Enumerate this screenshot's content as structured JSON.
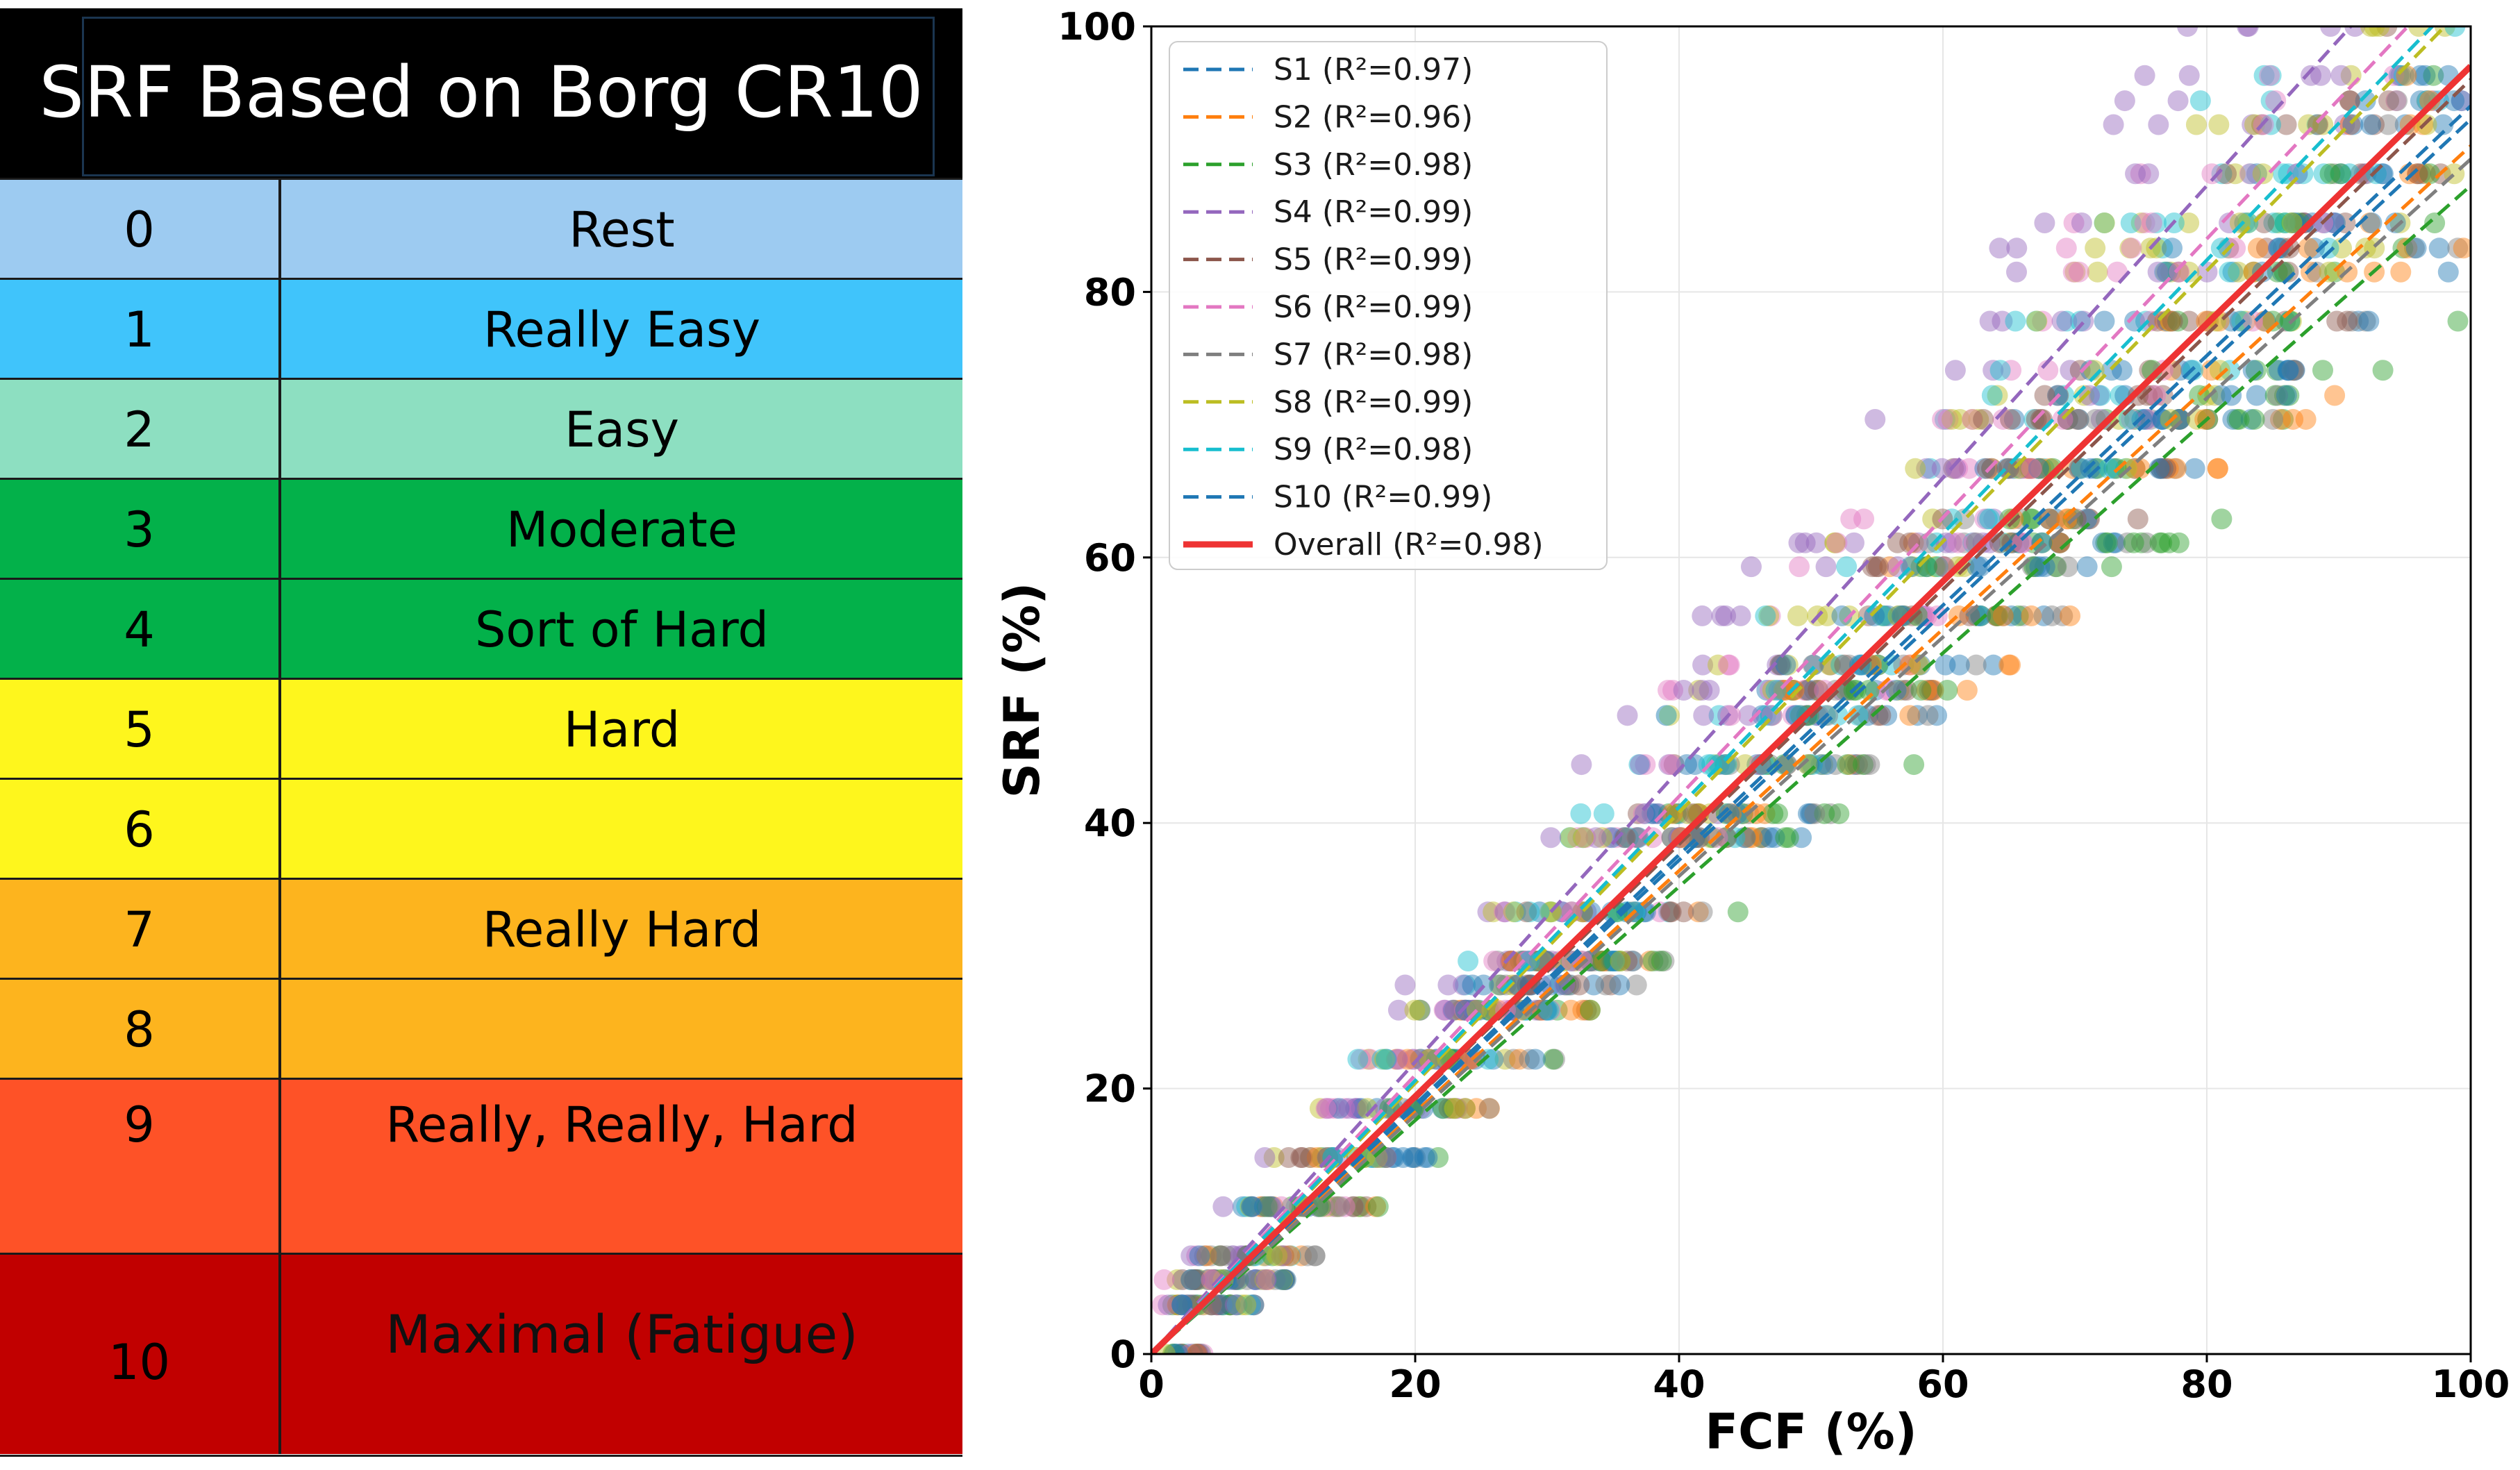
{
  "borg_table": {
    "title": "SRF Based on Borg CR10",
    "rows": [
      {
        "level": "0",
        "label": "Rest",
        "color": "#9dcbf1"
      },
      {
        "level": "1",
        "label": "Really Easy",
        "color": "#40c4fb"
      },
      {
        "level": "2",
        "label": "Easy",
        "color": "#8ddfc1"
      },
      {
        "level": "3",
        "label": "Moderate",
        "color": "#03b14a"
      },
      {
        "level": "4",
        "label": "Sort of Hard",
        "color": "#03b14a"
      },
      {
        "level": "5",
        "label": "Hard",
        "color": "#fef61d"
      },
      {
        "level": "6",
        "label": "",
        "color": "#fef61d"
      },
      {
        "level": "7",
        "label": "Really Hard",
        "color": "#fdb41e"
      },
      {
        "level": "8",
        "label": "",
        "color": "#fdb41e"
      },
      {
        "level": "9",
        "label": "Really, Really, Hard",
        "color": "#fe5227"
      },
      {
        "level": "10",
        "label": "Maximal (Fatigue)",
        "color": "#c10000"
      }
    ]
  },
  "chart_data": {
    "type": "scatter",
    "xlabel": "FCF (%)",
    "ylabel": "SRF (%)",
    "xlim": [
      0,
      100
    ],
    "ylim": [
      0,
      100
    ],
    "xticks": [
      0,
      20,
      40,
      60,
      80,
      100
    ],
    "yticks": [
      0,
      20,
      40,
      60,
      80,
      100
    ],
    "grid": true,
    "legend_position": "top-left",
    "srf_levels": [
      0,
      3.7,
      5.6,
      7.4,
      11.1,
      14.8,
      18.5,
      22.2,
      25.9,
      27.8,
      29.6,
      33.3,
      38.9,
      40.7,
      44.4,
      48.1,
      50,
      51.9,
      55.6,
      59.3,
      61.1,
      62.9,
      66.7,
      70.4,
      72.2,
      74.1,
      77.8,
      81.5,
      83.3,
      85.2,
      88.9,
      92.6,
      94.4,
      96.3,
      100
    ],
    "series": [
      {
        "name": "S1 (R²=0.97)",
        "color": "#1f77b4",
        "slope": 0.93,
        "style": "dashed"
      },
      {
        "name": "S2 (R²=0.96)",
        "color": "#ff7f0e",
        "slope": 0.91,
        "style": "dashed"
      },
      {
        "name": "S3 (R²=0.98)",
        "color": "#2ca02c",
        "slope": 0.88,
        "style": "dashed"
      },
      {
        "name": "S4 (R²=0.99)",
        "color": "#9467bd",
        "slope": 1.1,
        "style": "dashed"
      },
      {
        "name": "S5 (R²=0.99)",
        "color": "#8c564b",
        "slope": 0.96,
        "style": "dashed"
      },
      {
        "name": "S6 (R²=0.99)",
        "color": "#e377c2",
        "slope": 1.05,
        "style": "dashed"
      },
      {
        "name": "S7 (R²=0.98)",
        "color": "#7f7f7f",
        "slope": 0.9,
        "style": "dashed"
      },
      {
        "name": "S8 (R²=0.99)",
        "color": "#bcbd22",
        "slope": 1.02,
        "style": "dashed"
      },
      {
        "name": "S9 (R²=0.98)",
        "color": "#17becf",
        "slope": 1.03,
        "style": "dashed"
      },
      {
        "name": "S10 (R²=0.99)",
        "color": "#1f77b4",
        "slope": 0.94,
        "style": "dashed"
      },
      {
        "name": "Overall (R²=0.98)",
        "color": "#ee3333",
        "slope": 0.97,
        "style": "solid"
      }
    ]
  }
}
